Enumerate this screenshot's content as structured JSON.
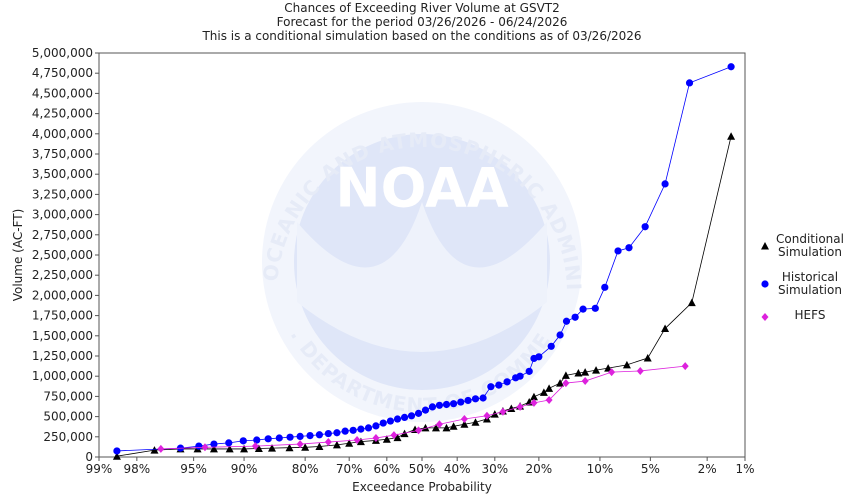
{
  "chart_data": {
    "type": "line",
    "title": "Chances of Exceeding River Volume at GSVT2",
    "subtitle": "Forecast for the period 03/26/2026 - 06/24/2026",
    "subtitle2": "This is a conditional simulation based on the conditions as of 03/26/2026",
    "xlabel": "Exceedance Probability",
    "ylabel": "Volume (AC-FT)",
    "watermark": "NOAA",
    "watermark_top": "NATIONAL OCEANIC AND ATMOSPHERIC ADMINISTRATION",
    "watermark_bottom": "U.S. DEPARTMENT OF COMMERCE",
    "xscale": "probability",
    "xlim": [
      99,
      1
    ],
    "xticks": [
      {
        "value": 99,
        "label": "99%"
      },
      {
        "value": 98,
        "label": "98%"
      },
      {
        "value": 95,
        "label": "95%"
      },
      {
        "value": 90,
        "label": "90%"
      },
      {
        "value": 80,
        "label": "80%"
      },
      {
        "value": 70,
        "label": "70%"
      },
      {
        "value": 60,
        "label": "60%"
      },
      {
        "value": 50,
        "label": "50%"
      },
      {
        "value": 40,
        "label": "40%"
      },
      {
        "value": 30,
        "label": "30%"
      },
      {
        "value": 20,
        "label": "20%"
      },
      {
        "value": 10,
        "label": "10%"
      },
      {
        "value": 5,
        "label": "5%"
      },
      {
        "value": 2,
        "label": "2%"
      },
      {
        "value": 1,
        "label": "1%"
      }
    ],
    "ylim": [
      0,
      5000000
    ],
    "yticks": [
      0,
      {
        "value": 250000,
        "label": "250,000"
      },
      {
        "value": 500000,
        "label": "500,000"
      },
      {
        "value": 750000,
        "label": "750,000"
      },
      {
        "value": 1000000,
        "label": "1,000,000"
      },
      {
        "value": 1250000,
        "label": "1,250,000"
      },
      {
        "value": 1500000,
        "label": "1,500,000"
      },
      {
        "value": 1750000,
        "label": "1,750,000"
      },
      {
        "value": 2000000,
        "label": "2,000,000"
      },
      {
        "value": 2250000,
        "label": "2,250,000"
      },
      {
        "value": 2500000,
        "label": "2,500,000"
      },
      {
        "value": 2750000,
        "label": "2,750,000"
      },
      {
        "value": 3000000,
        "label": "3,000,000"
      },
      {
        "value": 3250000,
        "label": "3,250,000"
      },
      {
        "value": 3500000,
        "label": "3,500,000"
      },
      {
        "value": 3750000,
        "label": "3,750,000"
      },
      {
        "value": 4000000,
        "label": "4,000,000"
      },
      {
        "value": 4250000,
        "label": "4,250,000"
      },
      {
        "value": 4500000,
        "label": "4,500,000"
      },
      {
        "value": 4750000,
        "label": "4,750,000"
      },
      {
        "value": 5000000,
        "label": "5,000,000"
      }
    ],
    "grid": false,
    "legend": "right",
    "series": [
      {
        "name": "Conditional Simulation",
        "color": "#000000",
        "marker": "triangle",
        "x": [
          98.6,
          97.3,
          95.9,
          94.7,
          93.3,
          91.7,
          90,
          88,
          86,
          83,
          80,
          77,
          73,
          70,
          67,
          63,
          60,
          57,
          55,
          52,
          49,
          46,
          43,
          41,
          38,
          35,
          32,
          30,
          28,
          26,
          24,
          22,
          21,
          19,
          18,
          16,
          15,
          13,
          12,
          10.5,
          9,
          7,
          5.2,
          4,
          2.6,
          1.3
        ],
        "values": [
          10000,
          85000,
          100000,
          100000,
          100000,
          100000,
          100000,
          105000,
          110000,
          115000,
          120000,
          130000,
          150000,
          170000,
          190000,
          205000,
          220000,
          240000,
          290000,
          340000,
          360000,
          360000,
          360000,
          380000,
          405000,
          430000,
          470000,
          530000,
          570000,
          600000,
          630000,
          680000,
          745000,
          800000,
          850000,
          915000,
          1010000,
          1040000,
          1050000,
          1075000,
          1100000,
          1140000,
          1225000,
          1590000,
          1910000,
          3970000
        ]
      },
      {
        "name": "Historical Simulation",
        "color": "#0000ff",
        "marker": "circle",
        "x": [
          98.6,
          95.9,
          94.6,
          93.3,
          91.8,
          90.1,
          88.3,
          86.6,
          84.8,
          82.9,
          81,
          79,
          77,
          75,
          73,
          71,
          69,
          67,
          65,
          63,
          61,
          59,
          57,
          55,
          53,
          51,
          49,
          47,
          45,
          43,
          41,
          39,
          37,
          35,
          33,
          31,
          29,
          27,
          25,
          24,
          22,
          21,
          20,
          17.6,
          16,
          14.9,
          13.5,
          12.3,
          10.6,
          9.4,
          7.9,
          6.8,
          5.4,
          4,
          2.7,
          1.3
        ],
        "values": [
          75000,
          110000,
          135000,
          160000,
          175000,
          200000,
          210000,
          225000,
          235000,
          245000,
          255000,
          265000,
          275000,
          290000,
          300000,
          320000,
          330000,
          345000,
          360000,
          385000,
          420000,
          445000,
          470000,
          490000,
          510000,
          540000,
          580000,
          620000,
          640000,
          650000,
          660000,
          680000,
          700000,
          720000,
          730000,
          870000,
          890000,
          930000,
          980000,
          1000000,
          1060000,
          1220000,
          1240000,
          1370000,
          1510000,
          1680000,
          1730000,
          1830000,
          1840000,
          2100000,
          2550000,
          2590000,
          2850000,
          3380000,
          4630000,
          4830000
        ]
      },
      {
        "name": "HEFS",
        "color": "#dd22dd",
        "marker": "diamond",
        "x": [
          97,
          94.1,
          88.5,
          81,
          75,
          68,
          63,
          58,
          51,
          45,
          38,
          32,
          28,
          24,
          21,
          18,
          15,
          12,
          8.6,
          5.8,
          2.9
        ],
        "values": [
          100000,
          120000,
          135000,
          160000,
          185000,
          210000,
          235000,
          270000,
          330000,
          405000,
          470000,
          510000,
          560000,
          620000,
          670000,
          705000,
          915000,
          940000,
          1050000,
          1065000,
          1125000
        ]
      }
    ]
  }
}
